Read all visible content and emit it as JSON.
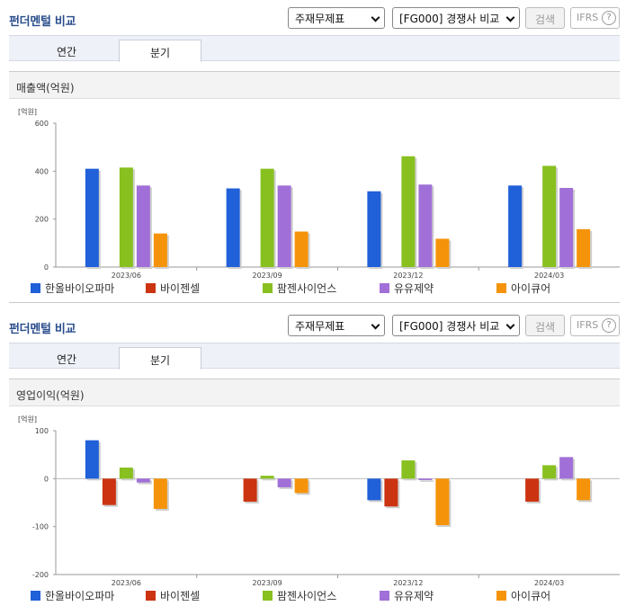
{
  "panels": [
    {
      "title": "펀더멘털 비교",
      "select_statement": "주재무제표",
      "select_compare": "[FG000] 경쟁사 비교",
      "search_label": "검색",
      "ifrs_label": "IFRS",
      "help_symbol": "?",
      "tabs": [
        "연간",
        "분기"
      ],
      "active_tab": "분기",
      "section_title": "매출액(억원)"
    },
    {
      "title": "펀더멘털 비교",
      "select_statement": "주재무제표",
      "select_compare": "[FG000] 경쟁사 비교",
      "search_label": "검색",
      "ifrs_label": "IFRS",
      "help_symbol": "?",
      "tabs": [
        "연간",
        "분기"
      ],
      "active_tab": "분기",
      "section_title": "영업이익(억원)"
    }
  ],
  "chart_data": [
    {
      "type": "bar",
      "title": "매출액(억원)",
      "unit": "[억원]",
      "categories": [
        "2023/06",
        "2023/09",
        "2023/12",
        "2024/03"
      ],
      "ylim": [
        0,
        600
      ],
      "yticks": [
        0,
        200,
        400,
        600
      ],
      "series": [
        {
          "name": "한올바이오파마",
          "color": "#2060d8",
          "values": [
            410,
            328,
            316,
            340
          ]
        },
        {
          "name": "바이젠셀",
          "color": "#cc3311",
          "values": [
            null,
            null,
            null,
            null
          ]
        },
        {
          "name": "팜젠사이언스",
          "color": "#88c020",
          "values": [
            415,
            410,
            462,
            422
          ]
        },
        {
          "name": "유유제약",
          "color": "#a070d8",
          "values": [
            340,
            340,
            344,
            330
          ]
        },
        {
          "name": "아이큐어",
          "color": "#f5940a",
          "values": [
            140,
            148,
            118,
            158
          ]
        }
      ],
      "legend": "bottom"
    },
    {
      "type": "bar",
      "title": "영업이익(억원)",
      "unit": "[억원]",
      "categories": [
        "2023/06",
        "2023/09",
        "2023/12",
        "2024/03"
      ],
      "ylim": [
        -200,
        100
      ],
      "yticks": [
        -200,
        -100,
        0,
        100
      ],
      "series": [
        {
          "name": "한올바이오파마",
          "color": "#2060d8",
          "values": [
            80,
            null,
            -45,
            null
          ]
        },
        {
          "name": "바이젠셀",
          "color": "#cc3311",
          "values": [
            -55,
            -48,
            -58,
            -48
          ]
        },
        {
          "name": "팜젠사이언스",
          "color": "#88c020",
          "values": [
            23,
            6,
            38,
            28
          ]
        },
        {
          "name": "유유제약",
          "color": "#a070d8",
          "values": [
            -8,
            -18,
            -3,
            45
          ]
        },
        {
          "name": "아이큐어",
          "color": "#f5940a",
          "values": [
            -63,
            -30,
            -97,
            -45
          ]
        }
      ],
      "legend": "bottom"
    }
  ]
}
